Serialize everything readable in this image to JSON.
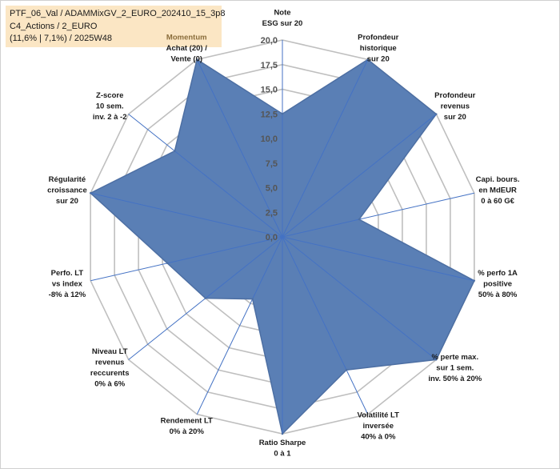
{
  "header": {
    "line1": "PTF_06_Val / ADAMMixGV_2_EURO_202410_15_3p8",
    "line2": "C4_Actions / 2_EURO",
    "line3": "(11,6% | 7,1%) / 2025W48"
  },
  "chart_data": {
    "type": "radar",
    "title": "",
    "r_range": [
      0,
      20
    ],
    "r_ticks": [
      "0,0",
      "2,5",
      "5,0",
      "7,5",
      "10,0",
      "12,5",
      "15,0",
      "17,5",
      "20,0"
    ],
    "grid": true,
    "axes": [
      {
        "label": [
          "Note",
          "ESG sur 20"
        ],
        "value": 12.5
      },
      {
        "label": [
          "Profondeur",
          "historique",
          "sur 20"
        ],
        "value": 20
      },
      {
        "label": [
          "Profondeur",
          "revenus",
          "sur 20"
        ],
        "value": 20
      },
      {
        "label": [
          "Capi. bours.",
          "en MdEUR",
          "0 à 60 G€"
        ],
        "value": 8
      },
      {
        "label": [
          "% perfo 1A",
          "positive",
          "50% à 80%"
        ],
        "value": 20
      },
      {
        "label": [
          "% perte max.",
          "sur 1 sem.",
          "inv. 50% à 20%"
        ],
        "value": 20
      },
      {
        "label": [
          "Volatilité LT",
          "inversée",
          "40% à 0%"
        ],
        "value": 15
      },
      {
        "label": [
          "Ratio Sharpe",
          "0 à 1"
        ],
        "value": 20
      },
      {
        "label": [
          "Rendement LT",
          "0% à 20%"
        ],
        "value": 7
      },
      {
        "label": [
          "Niveau LT",
          "revenus",
          "reccurents",
          "0% à 6%"
        ],
        "value": 10
      },
      {
        "label": [
          "Perfo. LT",
          "vs index",
          "-8% à 12%"
        ],
        "value": 12
      },
      {
        "label": [
          "Régularité",
          "croissance",
          "sur 20"
        ],
        "value": 20
      },
      {
        "label": [
          "Z-score",
          "10 sem.",
          "inv. 2 à -2"
        ],
        "value": 14
      },
      {
        "label": [
          "Momentum",
          "Achat (20) /",
          "Vente (0)"
        ],
        "value": 20
      }
    ],
    "series": [
      {
        "name": "PTF_06_Val",
        "color": "#5a7fb5"
      }
    ]
  },
  "colors": {
    "fill": "#5a7fb5",
    "stroke": "#4d6fa3",
    "grid": "#bfbfbf",
    "spoke": "#4472c4",
    "title_bg": "#fbe6c4",
    "momentum_label": "#8a6d3b"
  }
}
